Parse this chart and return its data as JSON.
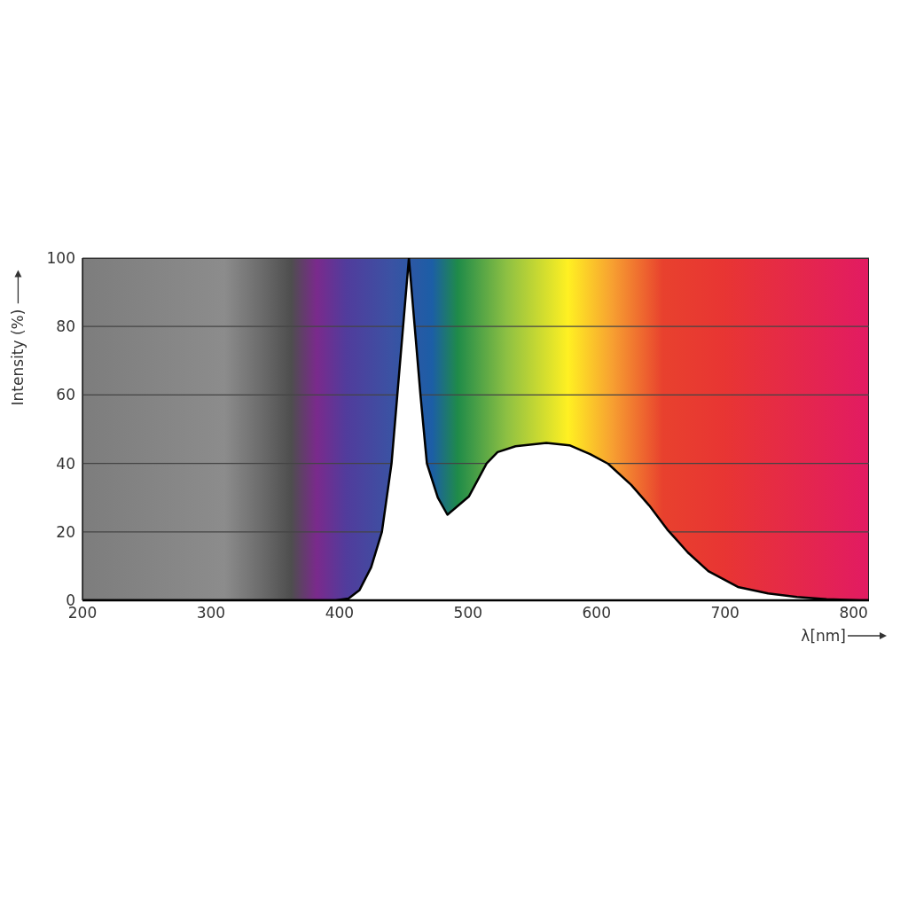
{
  "chart_data": {
    "type": "area",
    "xlabel": "λ[nm]",
    "ylabel": "Intensity (%)",
    "xlim": [
      200,
      812
    ],
    "xticks": [
      200,
      300,
      400,
      500,
      600,
      700,
      800
    ],
    "ylim": [
      0,
      100
    ],
    "yticks": [
      0,
      20,
      40,
      60,
      80,
      100
    ],
    "grid": "y",
    "legend": false,
    "series": [
      {
        "color": "#000000",
        "x": [
          200,
          300,
          397,
          407,
          415.6,
          424.6,
          433,
          440.5,
          445,
          449.5,
          454,
          458.5,
          463,
          468,
          476.5,
          484,
          500.6,
          514.5,
          523,
          537,
          561,
          579,
          595,
          609,
          627,
          641,
          655,
          671,
          687,
          710,
          733.5,
          756,
          779,
          805,
          812
        ],
        "values": [
          0,
          0,
          0,
          0.5,
          3,
          9.6,
          20,
          40,
          60,
          80,
          100,
          80,
          60,
          40,
          30,
          25,
          30.3,
          40,
          43.3,
          45,
          46,
          45.3,
          42.7,
          39.9,
          33.7,
          27.7,
          20.7,
          14,
          8.5,
          3.9,
          2,
          1,
          0.3,
          0,
          0
        ]
      }
    ]
  }
}
